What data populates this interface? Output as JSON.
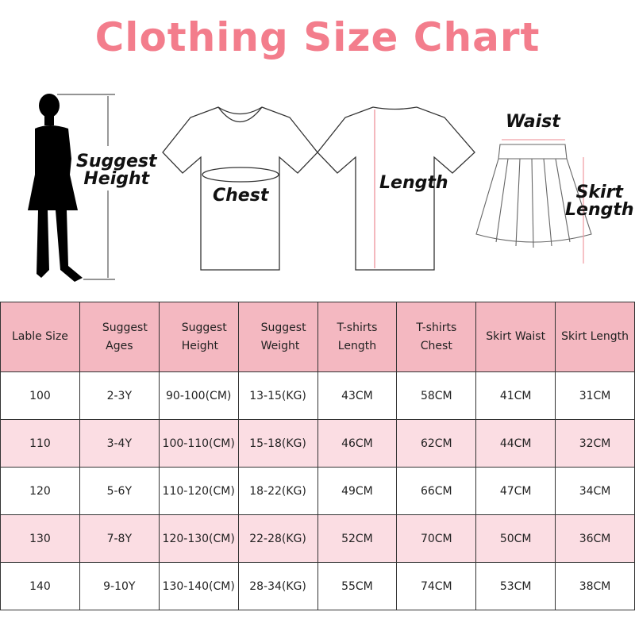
{
  "title": "Clothing Size Chart",
  "labels": {
    "height": [
      "Suggest",
      "Height"
    ],
    "chest": "Chest",
    "length": "Length",
    "waist": "Waist",
    "skirt_length": [
      "Skirt",
      "Length"
    ]
  },
  "colors": {
    "title": "#f37d8c",
    "header_bg": "#f4b8c1",
    "alt_row_bg": "#fbdde3",
    "arrow": "#f0a0a8"
  },
  "table": {
    "headers": [
      "Lable Size",
      "Suggest Ages",
      "Suggest Height",
      "Suggest Weight",
      "T-shirts Length",
      "T-shirts Chest",
      "Skirt Waist",
      "Skirt Length"
    ],
    "rows": [
      [
        "100",
        "2-3Y",
        "90-100(CM)",
        "13-15(KG)",
        "43CM",
        "58CM",
        "41CM",
        "31CM"
      ],
      [
        "110",
        "3-4Y",
        "100-110(CM)",
        "15-18(KG)",
        "46CM",
        "62CM",
        "44CM",
        "32CM"
      ],
      [
        "120",
        "5-6Y",
        "110-120(CM)",
        "18-22(KG)",
        "49CM",
        "66CM",
        "47CM",
        "34CM"
      ],
      [
        "130",
        "7-8Y",
        "120-130(CM)",
        "22-28(KG)",
        "52CM",
        "70CM",
        "50CM",
        "36CM"
      ],
      [
        "140",
        "9-10Y",
        "130-140(CM)",
        "28-34(KG)",
        "55CM",
        "74CM",
        "53CM",
        "38CM"
      ]
    ]
  }
}
